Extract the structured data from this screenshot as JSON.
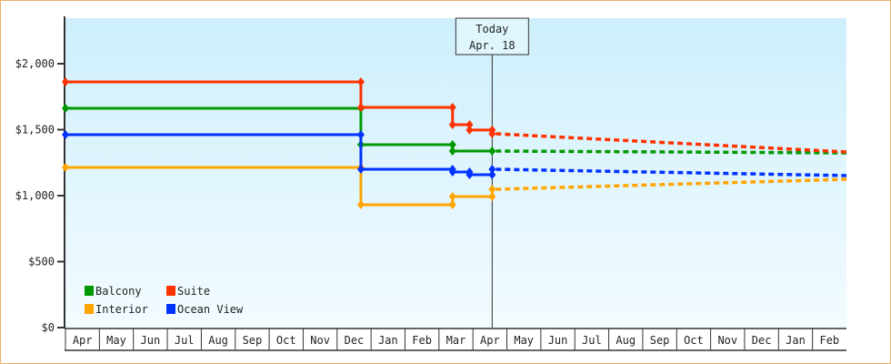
{
  "chart_data": {
    "type": "line",
    "title": "",
    "xlabel": "",
    "ylabel": "",
    "ylim": [
      0,
      2350
    ],
    "y_ticks": [
      "$0",
      "$500",
      "$1,000",
      "$1,500",
      "$2,000"
    ],
    "y_tick_values": [
      0,
      500,
      1000,
      1500,
      2000
    ],
    "x_ticks": [
      "Apr",
      "May",
      "Jun",
      "Jul",
      "Aug",
      "Sep",
      "Oct",
      "Nov",
      "Dec",
      "Jan",
      "Feb",
      "Mar",
      "Apr",
      "May",
      "Jun",
      "Jul",
      "Aug",
      "Sep",
      "Oct",
      "Nov",
      "Dec",
      "Jan",
      "Feb"
    ],
    "grid": false,
    "legend_placement": "bottom-left",
    "today_marker": {
      "line1": "Today",
      "line2": "Apr. 18",
      "date": "Apr 18"
    },
    "series": [
      {
        "name": "Balcony",
        "color": "#009900",
        "points": [
          [
            "Apr 1",
            1662
          ],
          [
            "Dec 22",
            1662
          ],
          [
            "Dec 22",
            1386
          ],
          [
            "Mar 13",
            1386
          ],
          [
            "Mar 13",
            1338
          ],
          [
            "Apr 18",
            1338
          ]
        ],
        "forecast": [
          [
            "Apr 18",
            1338
          ],
          [
            "Feb 28",
            1324
          ]
        ]
      },
      {
        "name": "Suite",
        "color": "#ff3300",
        "points": [
          [
            "Apr 1",
            1862
          ],
          [
            "Dec 22",
            1862
          ],
          [
            "Dec 22",
            1669
          ],
          [
            "Mar 13",
            1669
          ],
          [
            "Mar 13",
            1538
          ],
          [
            "Mar 28",
            1538
          ],
          [
            "Mar 28",
            1497
          ],
          [
            "Apr 18",
            1497
          ],
          [
            "Apr 18",
            1469
          ]
        ],
        "forecast": [
          [
            "Apr 18",
            1469
          ],
          [
            "Feb 28",
            1331
          ]
        ]
      },
      {
        "name": "Interior",
        "color": "#ffa500",
        "points": [
          [
            "Apr 1",
            1214
          ],
          [
            "Dec 22",
            1214
          ],
          [
            "Dec 22",
            931
          ],
          [
            "Mar 13",
            931
          ],
          [
            "Mar 13",
            993
          ],
          [
            "Apr 18",
            993
          ],
          [
            "Apr 18",
            1048
          ]
        ],
        "forecast": [
          [
            "Apr 18",
            1048
          ],
          [
            "Feb 28",
            1124
          ]
        ]
      },
      {
        "name": "Ocean View",
        "color": "#0033ff",
        "points": [
          [
            "Apr 1",
            1462
          ],
          [
            "Dec 22",
            1462
          ],
          [
            "Dec 22",
            1200
          ],
          [
            "Mar 13",
            1200
          ],
          [
            "Mar 13",
            1179
          ],
          [
            "Mar 28",
            1179
          ],
          [
            "Mar 28",
            1159
          ],
          [
            "Apr 18",
            1159
          ],
          [
            "Apr 18",
            1200
          ]
        ],
        "forecast": [
          [
            "Apr 18",
            1200
          ],
          [
            "Feb 28",
            1152
          ]
        ]
      }
    ]
  }
}
